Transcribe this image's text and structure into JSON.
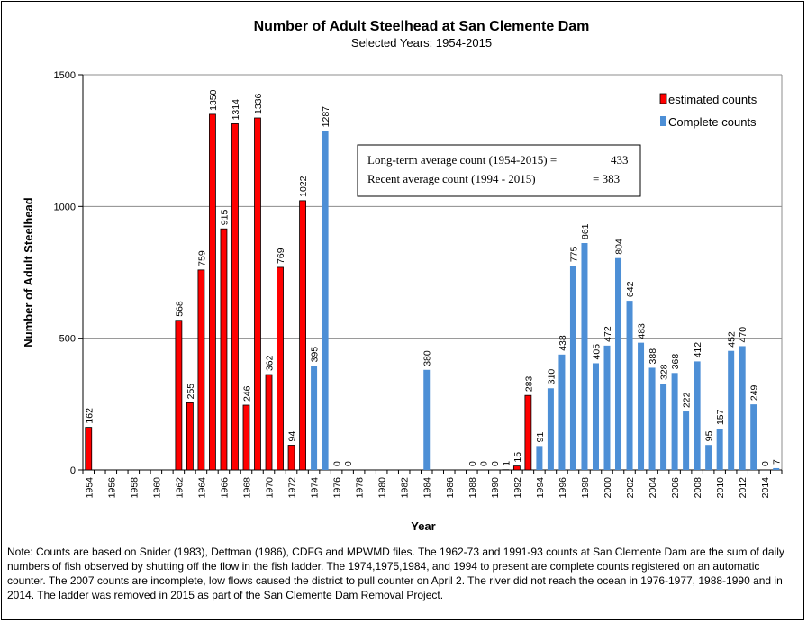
{
  "chart_data": {
    "type": "bar",
    "title": "Number of Adult Steelhead at San Clemente Dam",
    "subtitle": "Selected Years: 1954-2015",
    "xlabel": "Year",
    "ylabel": "Number of Adult Steelhead",
    "ylim": [
      0,
      1500
    ],
    "yticks": [
      "0",
      "500",
      "1000",
      "1500"
    ],
    "grid": true,
    "legend_position": "top-right",
    "years": [
      1954,
      1955,
      1956,
      1957,
      1958,
      1959,
      1960,
      1961,
      1962,
      1963,
      1964,
      1965,
      1966,
      1967,
      1968,
      1969,
      1970,
      1971,
      1972,
      1973,
      1974,
      1975,
      1976,
      1977,
      1978,
      1979,
      1980,
      1981,
      1982,
      1983,
      1984,
      1985,
      1986,
      1987,
      1988,
      1989,
      1990,
      1991,
      1992,
      1993,
      1994,
      1995,
      1996,
      1997,
      1998,
      1999,
      2000,
      2001,
      2002,
      2003,
      2004,
      2005,
      2006,
      2007,
      2008,
      2009,
      2010,
      2011,
      2012,
      2013,
      2014,
      2015
    ],
    "xtick_labels": [
      "1954",
      "1956",
      "1958",
      "1960",
      "1962",
      "1964",
      "1966",
      "1968",
      "1970",
      "1972",
      "1974",
      "1976",
      "1978",
      "1980",
      "1982",
      "1984",
      "1986",
      "1988",
      "1990",
      "1992",
      "1994",
      "1996",
      "1998",
      "2000",
      "2002",
      "2004",
      "2006",
      "2008",
      "2010",
      "2012",
      "2014"
    ],
    "series": [
      {
        "name": "estimated counts",
        "color": "#ff0000",
        "points": [
          {
            "year": 1954,
            "value": 162,
            "label": "162"
          },
          {
            "year": 1962,
            "value": 568,
            "label": "568"
          },
          {
            "year": 1963,
            "value": 255,
            "label": "255"
          },
          {
            "year": 1964,
            "value": 759,
            "label": "759"
          },
          {
            "year": 1965,
            "value": 1350,
            "label": "1350"
          },
          {
            "year": 1966,
            "value": 915,
            "label": "915"
          },
          {
            "year": 1967,
            "value": 1314,
            "label": "1314"
          },
          {
            "year": 1968,
            "value": 246,
            "label": "246"
          },
          {
            "year": 1969,
            "value": 1336,
            "label": "1336"
          },
          {
            "year": 1970,
            "value": 362,
            "label": "362"
          },
          {
            "year": 1971,
            "value": 769,
            "label": "769"
          },
          {
            "year": 1972,
            "value": 94,
            "label": "94"
          },
          {
            "year": 1973,
            "value": 1022,
            "label": "1022"
          },
          {
            "year": 1991,
            "value": 1,
            "label": "1"
          },
          {
            "year": 1992,
            "value": 15,
            "label": "15"
          },
          {
            "year": 1993,
            "value": 283,
            "label": "283"
          }
        ]
      },
      {
        "name": "Complete counts",
        "color": "#4d8fd6",
        "points": [
          {
            "year": 1974,
            "value": 395,
            "label": "395"
          },
          {
            "year": 1975,
            "value": 1287,
            "label": "1287"
          },
          {
            "year": 1976,
            "value": 0,
            "label": "0"
          },
          {
            "year": 1977,
            "value": 0,
            "label": "0"
          },
          {
            "year": 1984,
            "value": 380,
            "label": "380"
          },
          {
            "year": 1988,
            "value": 0,
            "label": "0"
          },
          {
            "year": 1989,
            "value": 0,
            "label": "0"
          },
          {
            "year": 1990,
            "value": 0,
            "label": "0"
          },
          {
            "year": 1994,
            "value": 91,
            "label": "91"
          },
          {
            "year": 1995,
            "value": 310,
            "label": "310"
          },
          {
            "year": 1996,
            "value": 438,
            "label": "438"
          },
          {
            "year": 1997,
            "value": 775,
            "label": "775"
          },
          {
            "year": 1998,
            "value": 861,
            "label": "861"
          },
          {
            "year": 1999,
            "value": 405,
            "label": "405"
          },
          {
            "year": 2000,
            "value": 472,
            "label": "472"
          },
          {
            "year": 2001,
            "value": 804,
            "label": "804"
          },
          {
            "year": 2002,
            "value": 642,
            "label": "642"
          },
          {
            "year": 2003,
            "value": 483,
            "label": "483"
          },
          {
            "year": 2004,
            "value": 388,
            "label": "388"
          },
          {
            "year": 2005,
            "value": 328,
            "label": "328"
          },
          {
            "year": 2006,
            "value": 368,
            "label": "368"
          },
          {
            "year": 2007,
            "value": 222,
            "label": "222"
          },
          {
            "year": 2008,
            "value": 412,
            "label": "412"
          },
          {
            "year": 2009,
            "value": 95,
            "label": "95"
          },
          {
            "year": 2010,
            "value": 157,
            "label": "157"
          },
          {
            "year": 2011,
            "value": 452,
            "label": "452"
          },
          {
            "year": 2012,
            "value": 470,
            "label": "470"
          },
          {
            "year": 2013,
            "value": 249,
            "label": "249"
          },
          {
            "year": 2014,
            "value": 0,
            "label": "0"
          },
          {
            "year": 2015,
            "value": 7,
            "label": "7"
          }
        ]
      }
    ],
    "annotation": {
      "line1_label": "Long-term average count (1954-2015) =",
      "line1_value": "433",
      "line2_label": "Recent average count (1994 - 2015)",
      "line2_value": "= 383"
    }
  },
  "note": "Note:   Counts are based on Snider (1983), Dettman (1986), CDFG and MPWMD files.  The 1962-73 and 1991-93 counts at San Clemente Dam are the sum of daily numbers of fish observed by shutting off the flow in the fish ladder.  The 1974,1975,1984, and 1994 to present are complete counts registered on an automatic counter. The 2007 counts are incomplete, low flows caused the district to pull counter on April 2.  The river did not reach the ocean in 1976-1977, 1988-1990 and in 2014.  The ladder was removed in 2015 as part of the San Clemente Dam Removal Project."
}
